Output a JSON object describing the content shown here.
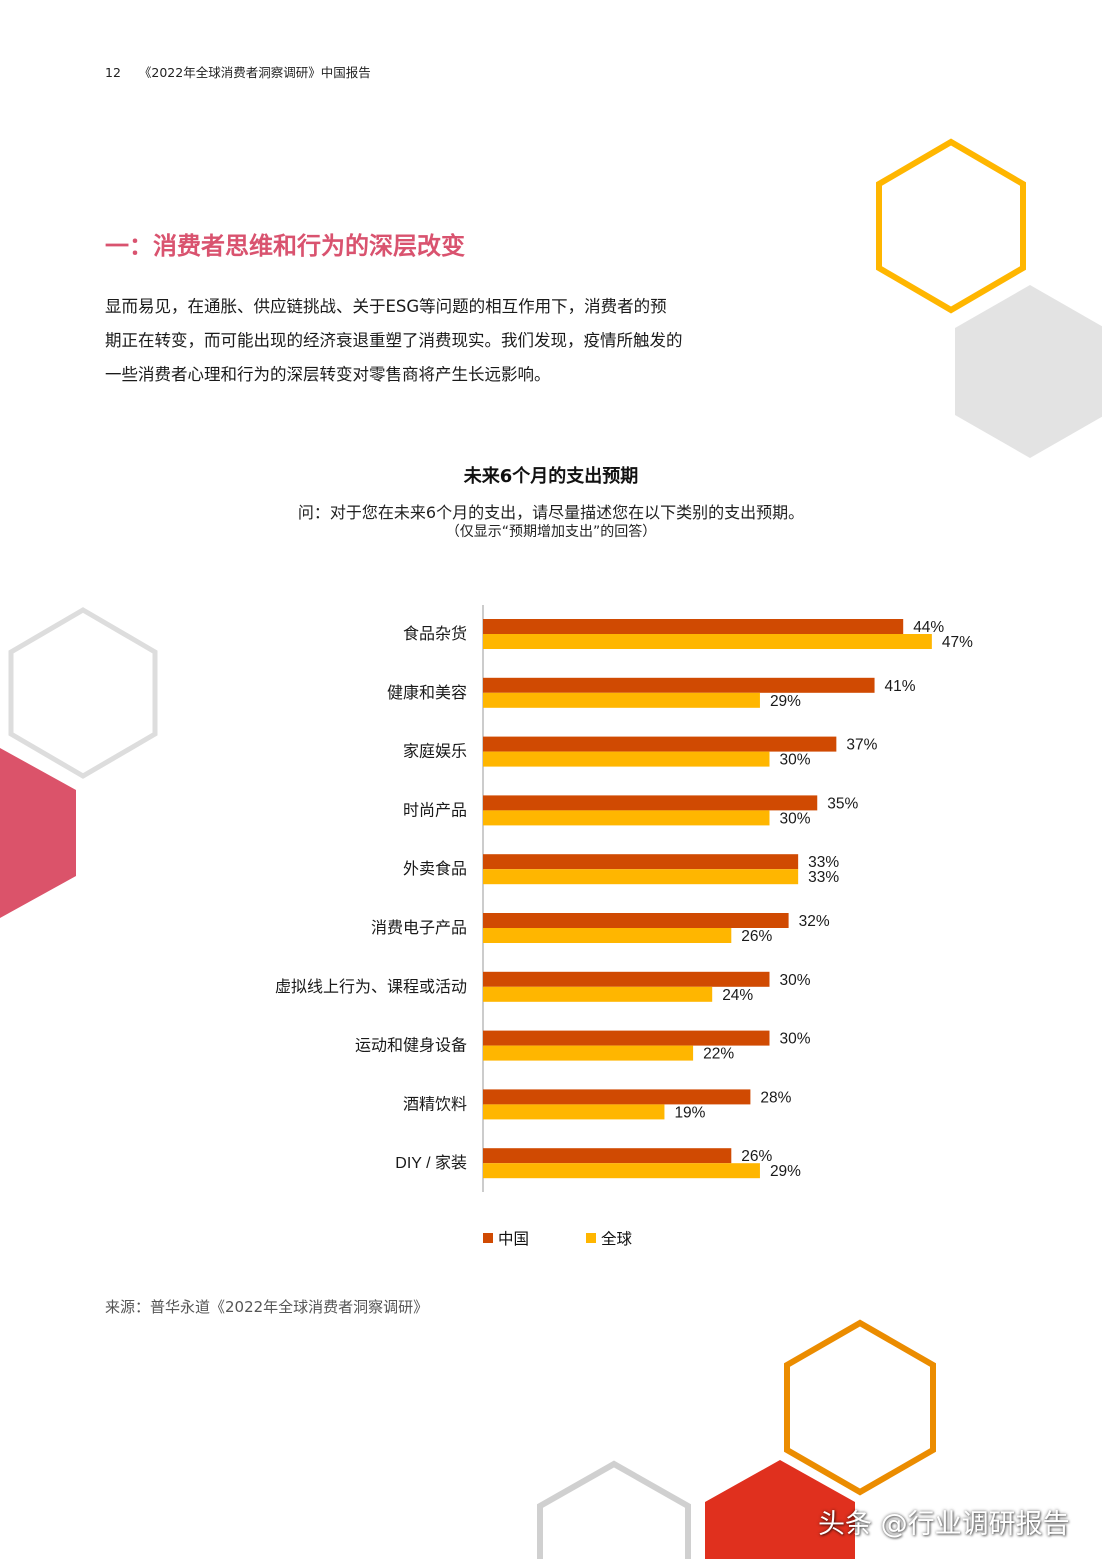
{
  "header": {
    "page_number": "12",
    "doc_title": "《2022年全球消费者洞察调研》中国报告"
  },
  "section": {
    "title": "一：消费者思维和行为的深层改变"
  },
  "intro": {
    "lines": [
      "显而易见，在通胀、供应链挑战、关于ESG等问题的相互作用下，消费者的预",
      "期正在转变，而可能出现的经济衰退重塑了消费现实。我们发现，疫情所触发的",
      "一些消费者心理和行为的深层转变对零售商将产生长远影响。"
    ]
  },
  "chart_data": {
    "type": "bar",
    "orientation": "horizontal",
    "title": "未来6个月的支出预期",
    "subtitle": "问：对于您在未来6个月的支出，请尽量描述您在以下类别的支出预期。",
    "note": "（仅显示“预期增加支出”的回答）",
    "categories": [
      "食品杂货",
      "健康和美容",
      "家庭娱乐",
      "时尚产品",
      "外卖食品",
      "消费电子产品",
      "虚拟线上行为、课程或活动",
      "运动和健身设备",
      "酒精饮料",
      "DIY / 家装"
    ],
    "series": [
      {
        "name": "中国",
        "color": "#d04a02",
        "values": [
          44,
          41,
          37,
          35,
          33,
          32,
          30,
          30,
          28,
          26
        ]
      },
      {
        "name": "全球",
        "color": "#ffb600",
        "values": [
          47,
          29,
          30,
          30,
          33,
          26,
          24,
          22,
          19,
          29
        ]
      }
    ],
    "unit": "%",
    "xlim": [
      0,
      50
    ],
    "grid": false,
    "legend_position": "bottom"
  },
  "source": "来源：普华永道《2022年全球消费者洞察调研》",
  "watermark": "头条 @行业调研报告",
  "colors": {
    "accent_pink": "#d9536f",
    "orange": "#d04a02",
    "yellow": "#ffb600",
    "grey_hex": "#e3e3e3",
    "red_hex": "#e0301e"
  }
}
